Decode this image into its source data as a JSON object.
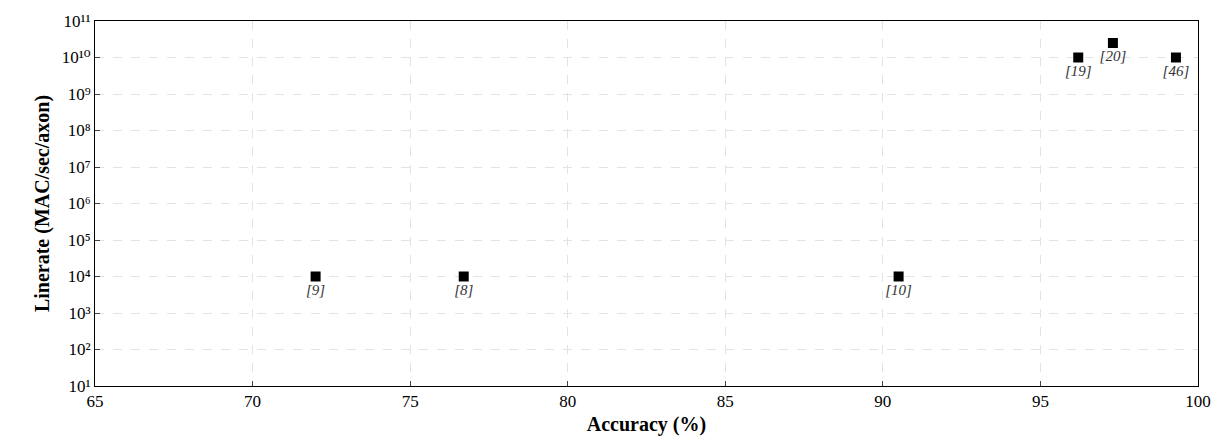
{
  "chart_data": {
    "type": "scatter",
    "x_label": "Accuracy (%)",
    "y_label": "Linerate (MAC/sec/axon)",
    "x": [
      72,
      76.7,
      90.5,
      96.2,
      97.3,
      99.3
    ],
    "values": [
      10000,
      10000,
      10000,
      10000000000,
      25000000000,
      10000000000
    ],
    "labels": [
      "[9]",
      "[8]",
      "[10]",
      "[19]",
      "[20]",
      "[46]"
    ],
    "color": "#000000",
    "marker": "square",
    "log": "y",
    "grid": true,
    "xlim": [
      65,
      100
    ],
    "xticks": [
      65,
      70,
      75,
      80,
      85,
      90,
      95,
      100
    ],
    "ylim": [
      10,
      100000000000
    ],
    "yticks": [
      {
        "value": 10,
        "label": "10¹"
      },
      {
        "value": 100,
        "label": "10²"
      },
      {
        "value": 1000,
        "label": "10³"
      },
      {
        "value": 10000,
        "label": "10⁴"
      },
      {
        "value": 100000,
        "label": "10⁵"
      },
      {
        "value": 1000000,
        "label": "10⁶"
      },
      {
        "value": 10000000,
        "label": "10⁷"
      },
      {
        "value": 100000000,
        "label": "10⁸"
      },
      {
        "value": 1000000000,
        "label": "10⁹"
      },
      {
        "value": 10000000000,
        "label": "10¹⁰"
      },
      {
        "value": 100000000000,
        "label": "10¹¹"
      }
    ]
  }
}
